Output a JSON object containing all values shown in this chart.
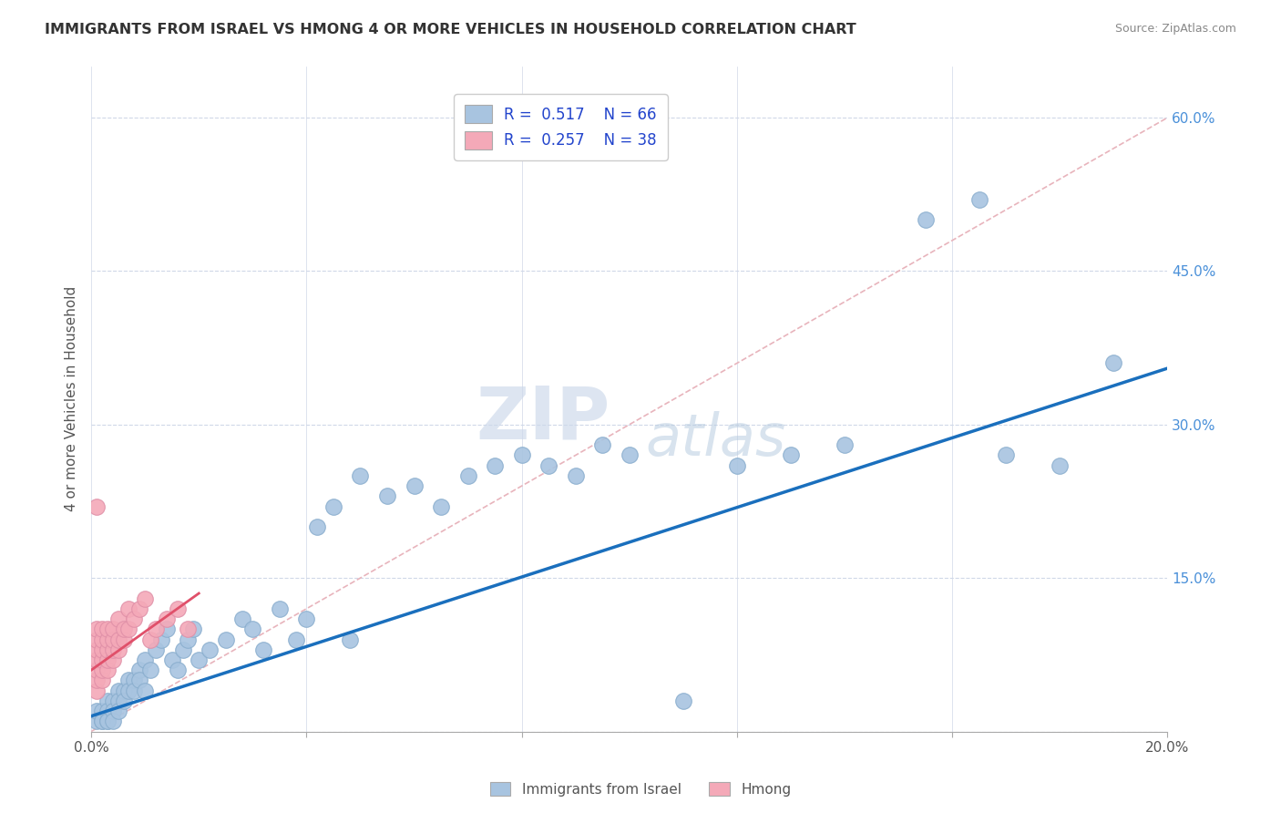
{
  "title": "IMMIGRANTS FROM ISRAEL VS HMONG 4 OR MORE VEHICLES IN HOUSEHOLD CORRELATION CHART",
  "source": "Source: ZipAtlas.com",
  "ylabel": "4 or more Vehicles in Household",
  "xlim": [
    0.0,
    0.2
  ],
  "ylim": [
    0.0,
    0.65
  ],
  "xticks": [
    0.0,
    0.04,
    0.08,
    0.12,
    0.16,
    0.2
  ],
  "xticklabels": [
    "0.0%",
    "",
    "",
    "",
    "",
    "20.0%"
  ],
  "yticks_right": [
    0.0,
    0.15,
    0.3,
    0.45,
    0.6
  ],
  "ytick_labels_right": [
    "",
    "15.0%",
    "30.0%",
    "45.0%",
    "60.0%"
  ],
  "israel_R": 0.517,
  "israel_N": 66,
  "hmong_R": 0.257,
  "hmong_N": 38,
  "israel_color": "#a8c4e0",
  "hmong_color": "#f4a9b8",
  "israel_line_color": "#1a6fbd",
  "hmong_line_color": "#e0506a",
  "ref_line_color": "#e8b4bc",
  "watermark_zip": "ZIP",
  "watermark_atlas": "atlas",
  "background_color": "#ffffff",
  "israel_scatter_x": [
    0.001,
    0.001,
    0.002,
    0.002,
    0.002,
    0.003,
    0.003,
    0.003,
    0.003,
    0.004,
    0.004,
    0.004,
    0.005,
    0.005,
    0.005,
    0.006,
    0.006,
    0.007,
    0.007,
    0.008,
    0.008,
    0.009,
    0.009,
    0.01,
    0.01,
    0.011,
    0.012,
    0.013,
    0.014,
    0.015,
    0.016,
    0.017,
    0.018,
    0.019,
    0.02,
    0.022,
    0.025,
    0.028,
    0.03,
    0.032,
    0.035,
    0.038,
    0.04,
    0.042,
    0.045,
    0.048,
    0.05,
    0.055,
    0.06,
    0.065,
    0.07,
    0.075,
    0.08,
    0.085,
    0.09,
    0.095,
    0.1,
    0.11,
    0.12,
    0.13,
    0.14,
    0.155,
    0.165,
    0.17,
    0.18,
    0.19
  ],
  "israel_scatter_y": [
    0.01,
    0.02,
    0.01,
    0.02,
    0.01,
    0.03,
    0.02,
    0.01,
    0.01,
    0.03,
    0.02,
    0.01,
    0.04,
    0.03,
    0.02,
    0.04,
    0.03,
    0.05,
    0.04,
    0.05,
    0.04,
    0.06,
    0.05,
    0.04,
    0.07,
    0.06,
    0.08,
    0.09,
    0.1,
    0.07,
    0.06,
    0.08,
    0.09,
    0.1,
    0.07,
    0.08,
    0.09,
    0.11,
    0.1,
    0.08,
    0.12,
    0.09,
    0.11,
    0.2,
    0.22,
    0.09,
    0.25,
    0.23,
    0.24,
    0.22,
    0.25,
    0.26,
    0.27,
    0.26,
    0.25,
    0.28,
    0.27,
    0.03,
    0.26,
    0.27,
    0.28,
    0.5,
    0.52,
    0.27,
    0.26,
    0.36
  ],
  "hmong_scatter_x": [
    0.001,
    0.001,
    0.001,
    0.001,
    0.001,
    0.001,
    0.001,
    0.001,
    0.002,
    0.002,
    0.002,
    0.002,
    0.002,
    0.002,
    0.003,
    0.003,
    0.003,
    0.003,
    0.003,
    0.004,
    0.004,
    0.004,
    0.004,
    0.005,
    0.005,
    0.005,
    0.006,
    0.006,
    0.007,
    0.007,
    0.008,
    0.009,
    0.01,
    0.011,
    0.012,
    0.014,
    0.016,
    0.018
  ],
  "hmong_scatter_y": [
    0.04,
    0.05,
    0.06,
    0.07,
    0.08,
    0.09,
    0.1,
    0.22,
    0.05,
    0.06,
    0.07,
    0.08,
    0.09,
    0.1,
    0.06,
    0.07,
    0.08,
    0.09,
    0.1,
    0.07,
    0.08,
    0.09,
    0.1,
    0.08,
    0.09,
    0.11,
    0.09,
    0.1,
    0.1,
    0.12,
    0.11,
    0.12,
    0.13,
    0.09,
    0.1,
    0.11,
    0.12,
    0.1
  ],
  "israel_line_x": [
    0.0,
    0.2
  ],
  "israel_line_y": [
    0.015,
    0.355
  ],
  "hmong_line_x": [
    0.0,
    0.02
  ],
  "hmong_line_y": [
    0.06,
    0.135
  ]
}
